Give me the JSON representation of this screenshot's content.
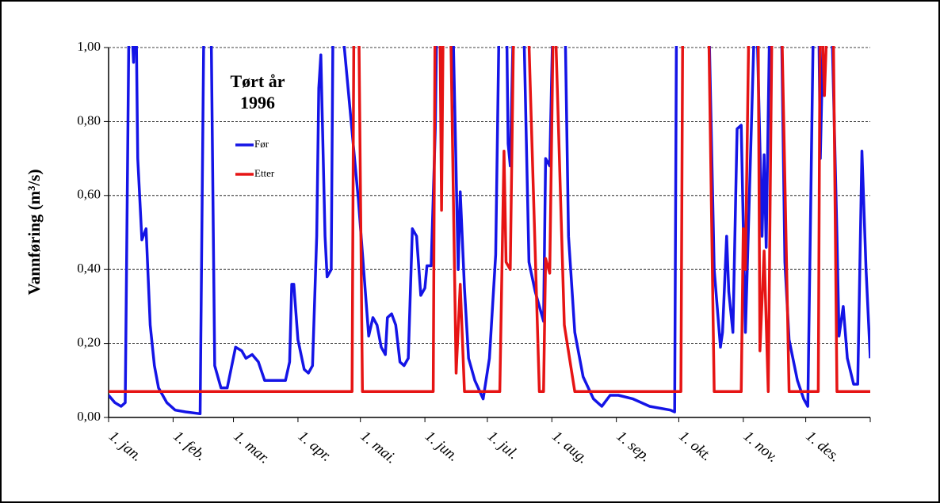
{
  "chart_data": {
    "type": "line",
    "title": [
      "Tørt år",
      "1996"
    ],
    "y_label": "Vannføring (m³/s)",
    "xlim": [
      0,
      366
    ],
    "ylim": [
      0,
      1
    ],
    "xticks": [
      {
        "value": 0,
        "label": "1. jan."
      },
      {
        "value": 31,
        "label": "1. feb."
      },
      {
        "value": 60,
        "label": "1. mar."
      },
      {
        "value": 91,
        "label": "1. apr."
      },
      {
        "value": 121,
        "label": "1. mai."
      },
      {
        "value": 152,
        "label": "1. jun."
      },
      {
        "value": 182,
        "label": "1. jul."
      },
      {
        "value": 213,
        "label": "1. aug."
      },
      {
        "value": 244,
        "label": "1. sep."
      },
      {
        "value": 274,
        "label": "1. okt."
      },
      {
        "value": 305,
        "label": "1. nov."
      },
      {
        "value": 335,
        "label": "1. des."
      }
    ],
    "yticks": [
      {
        "value": 0,
        "label": "0,00"
      },
      {
        "value": 0.2,
        "label": "0,20"
      },
      {
        "value": 0.4,
        "label": "0,40"
      },
      {
        "value": 0.6,
        "label": "0,60"
      },
      {
        "value": 0.8,
        "label": "0,80"
      },
      {
        "value": 1,
        "label": "1,00"
      }
    ],
    "grid": true,
    "series": [
      {
        "name": "Før",
        "color": "#1414e6",
        "x": [
          0,
          3,
          6,
          8,
          10,
          12,
          13,
          14,
          16,
          18,
          20,
          22,
          24,
          28,
          32,
          37,
          44,
          46,
          49,
          51,
          54,
          57,
          61,
          64,
          66,
          69,
          72,
          75,
          79,
          85,
          87,
          88,
          89,
          91,
          94,
          96,
          98,
          100,
          101,
          102,
          104,
          105,
          107,
          108,
          110,
          120,
          125,
          127,
          129,
          131,
          133,
          134,
          136,
          138,
          140,
          142,
          144,
          146,
          148,
          150,
          152,
          153,
          155,
          157,
          158,
          165,
          168,
          169,
          171,
          173,
          176,
          180,
          183,
          186,
          188,
          191,
          192,
          193,
          195,
          199,
          202,
          205,
          209,
          210,
          212,
          214,
          219,
          221,
          224,
          228,
          233,
          237,
          241,
          245,
          252,
          260,
          270,
          272,
          273,
          288,
          291,
          294,
          295,
          297,
          298,
          300,
          302,
          304,
          306,
          311,
          314,
          315,
          316,
          318,
          323,
          325,
          327,
          331,
          334,
          336,
          339,
          341,
          342,
          344,
          347,
          350,
          351,
          353,
          355,
          358,
          360,
          362,
          364,
          366
        ],
        "values": [
          0.06,
          0.04,
          0.03,
          0.04,
          1.2,
          0.96,
          1.2,
          0.7,
          0.48,
          0.51,
          0.25,
          0.14,
          0.08,
          0.04,
          0.02,
          0.015,
          0.01,
          1.2,
          1.2,
          0.14,
          0.08,
          0.08,
          0.19,
          0.18,
          0.16,
          0.17,
          0.15,
          0.1,
          0.1,
          0.1,
          0.15,
          0.36,
          0.36,
          0.21,
          0.13,
          0.12,
          0.14,
          0.49,
          0.89,
          0.98,
          0.49,
          0.38,
          0.4,
          1.2,
          1.2,
          0.59,
          0.22,
          0.27,
          0.25,
          0.19,
          0.17,
          0.27,
          0.28,
          0.25,
          0.15,
          0.14,
          0.16,
          0.51,
          0.49,
          0.33,
          0.35,
          0.41,
          0.41,
          0.78,
          1.2,
          1.2,
          0.4,
          0.61,
          0.35,
          0.16,
          0.1,
          0.05,
          0.16,
          0.44,
          1.2,
          1.2,
          0.74,
          0.68,
          1.2,
          1.2,
          0.42,
          0.34,
          0.26,
          0.7,
          0.68,
          1.2,
          1.2,
          0.49,
          0.23,
          0.11,
          0.05,
          0.03,
          0.06,
          0.06,
          0.05,
          0.03,
          0.02,
          0.015,
          1.2,
          1.2,
          0.4,
          0.19,
          0.23,
          0.49,
          0.34,
          0.23,
          0.78,
          0.79,
          0.23,
          1.2,
          0.49,
          0.71,
          0.46,
          1.2,
          1.2,
          0.42,
          0.21,
          0.1,
          0.05,
          0.03,
          1.2,
          1.2,
          0.7,
          1.2,
          1.2,
          0.49,
          0.22,
          0.3,
          0.16,
          0.09,
          0.09,
          0.72,
          0.4,
          0.16
        ]
      },
      {
        "name": "Etter",
        "color": "#e61414",
        "x": [
          0,
          117,
          118,
          120,
          122,
          156,
          157,
          159,
          160,
          161,
          164,
          167,
          169,
          171,
          188,
          190,
          191,
          193,
          195,
          201,
          207,
          209,
          210,
          212,
          214,
          219,
          224,
          275,
          276,
          288,
          291,
          304,
          305,
          306,
          308,
          312,
          313,
          315,
          317,
          319,
          323,
          327,
          341,
          342,
          344,
          346,
          348,
          350,
          366
        ],
        "values": [
          0.07,
          0.07,
          1.2,
          1.2,
          0.07,
          0.07,
          1.2,
          1.2,
          0.56,
          1.2,
          1.2,
          0.12,
          0.36,
          0.07,
          0.07,
          0.72,
          0.42,
          0.4,
          1.2,
          1.2,
          0.07,
          0.07,
          0.43,
          0.39,
          1.2,
          0.25,
          0.07,
          0.07,
          1.2,
          1.2,
          0.07,
          0.07,
          0.51,
          0.4,
          1.2,
          1.2,
          0.18,
          0.45,
          0.07,
          1.2,
          1.2,
          0.07,
          0.07,
          1.2,
          0.87,
          1.2,
          1.2,
          0.07,
          0.07
        ]
      }
    ]
  }
}
